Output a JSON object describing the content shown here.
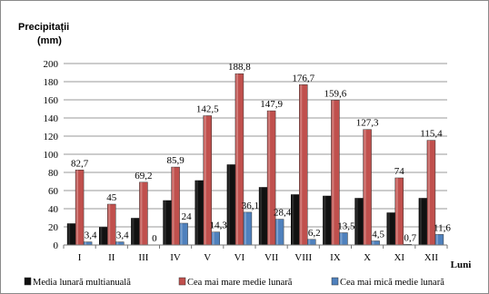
{
  "chart_data": {
    "type": "bar",
    "ylabel_line1": "Precipitații",
    "ylabel_line2": "(mm)",
    "xlabel": "Luni",
    "ylim": [
      0,
      200
    ],
    "ytick_step": 20,
    "grid": true,
    "legend_position": "bottom",
    "categories": [
      "I",
      "II",
      "III",
      "IV",
      "V",
      "VI",
      "VII",
      "VIII",
      "IX",
      "X",
      "XI",
      "XII"
    ],
    "series": [
      {
        "name": "Media lunară multianuală",
        "color": "#111111",
        "values": [
          23.5,
          19.5,
          29.5,
          49,
          71,
          88.5,
          63.5,
          55.5,
          54,
          51.5,
          35.5,
          51.5
        ],
        "labels": [
          "",
          "",
          "",
          "",
          "",
          "",
          "",
          "",
          "",
          "",
          "",
          ""
        ]
      },
      {
        "name": "Cea mai mare medie lunară",
        "color": "#c0504d",
        "values": [
          82.7,
          45,
          69.2,
          85.9,
          142.5,
          188.8,
          147.9,
          176.7,
          159.6,
          127.3,
          74,
          115.4
        ],
        "labels": [
          "82,7",
          "45",
          "69,2",
          "85,9",
          "142,5",
          "188,8",
          "147,9",
          "176,7",
          "159,6",
          "127,3",
          "74",
          "115,4"
        ]
      },
      {
        "name": "Cea mai mică medie lunară",
        "color": "#4f81bd",
        "values": [
          3.4,
          3.4,
          0,
          24,
          14.3,
          36.1,
          28.4,
          6.2,
          13.5,
          4.5,
          0.7,
          11.6
        ],
        "labels": [
          "3,4",
          "3,4",
          "0",
          "24",
          "14,3",
          "36,1",
          "28,4",
          "6,2",
          "13,5",
          "4,5",
          "0,7",
          "11,6"
        ]
      }
    ]
  }
}
